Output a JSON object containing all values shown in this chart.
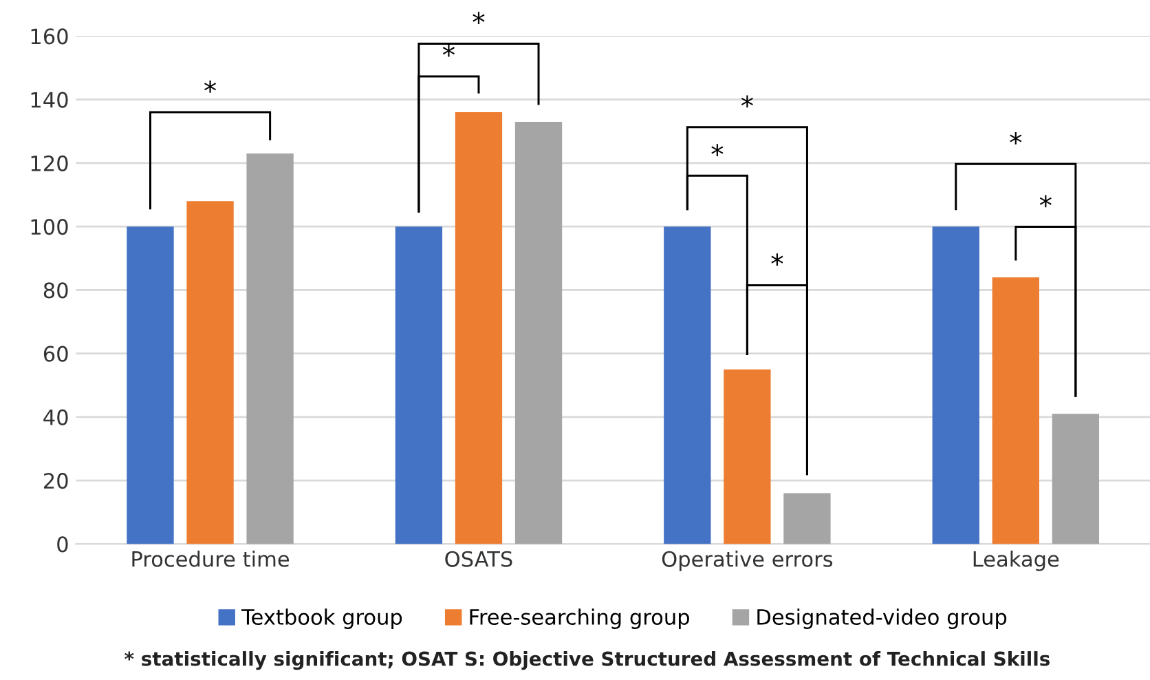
{
  "chart_data": {
    "type": "bar",
    "categories": [
      "Procedure time",
      "OSATS",
      "Operative errors",
      "Leakage"
    ],
    "series": [
      {
        "name": "Textbook group",
        "color": "#4472c4",
        "values": [
          100,
          100,
          100,
          100
        ]
      },
      {
        "name": "Free-searching group",
        "color": "#ed7d31",
        "values": [
          108,
          136,
          55,
          84
        ]
      },
      {
        "name": "Designated-video group",
        "color": "#a5a5a5",
        "values": [
          123,
          133,
          16,
          41
        ]
      }
    ],
    "ylim": [
      0,
      160
    ],
    "yticks": [
      0,
      20,
      40,
      60,
      80,
      100,
      120,
      140,
      160
    ],
    "grid": "y",
    "legend": "bottom",
    "annotations": [
      "*",
      "*",
      "*",
      "*",
      "*",
      "*",
      "*",
      "*",
      "* statistically significant; OSAT S: Objective Structured Assessment of Technical Skills"
    ]
  }
}
